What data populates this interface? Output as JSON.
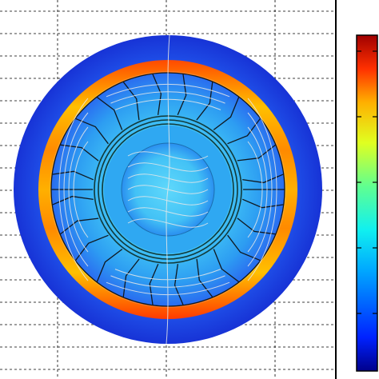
{
  "figure": {
    "kind": "field-plot",
    "description_visible_text": "",
    "colormap": {
      "name": "jet",
      "stops": [
        "#00008b",
        "#0033ff",
        "#00a0ff",
        "#00e5ff",
        "#40ff9f",
        "#c8ff30",
        "#ffd000",
        "#ff6000",
        "#d40000",
        "#8b0000"
      ]
    },
    "colors": {
      "outer_ring": "#1a3fe0",
      "rotor_core": "#38b8f2",
      "stator_base": "#2a8ef0",
      "hot_band": "#ff5a00",
      "warm_band": "#f5c000",
      "grid_line": "#000000",
      "field_line": "#e8e8e8",
      "coil_line": "#123a3a",
      "frame": "#000000"
    },
    "stator_slot_count": 24,
    "rotor_winding_rings": 3
  }
}
